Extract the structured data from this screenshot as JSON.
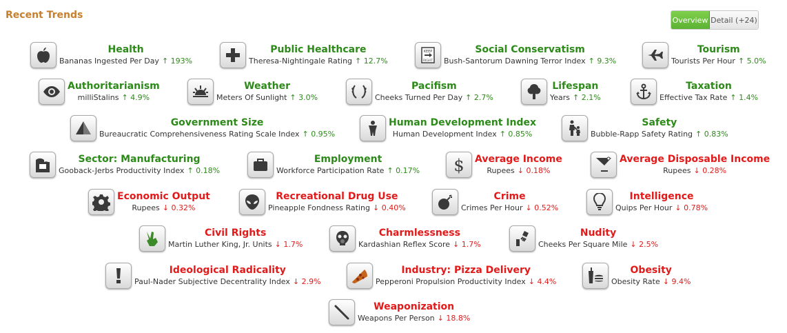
{
  "section_title": "Recent Trends",
  "view_toggle": {
    "overview_label": "Overview",
    "detail_label": "Detail (+24)"
  },
  "colors": {
    "up": "#2c8a19",
    "down": "#e21a1a",
    "title": "#c87f2c",
    "active_toggle": "#6cc13e"
  },
  "trends": [
    {
      "name": "Health",
      "measure": "Bananas Ingested Per Day",
      "arrow": "↑",
      "change": "193%",
      "direction": "up",
      "icon": "apple-icon"
    },
    {
      "name": "Public Healthcare",
      "measure": "Theresa-Nightingale Rating",
      "arrow": "↑",
      "change": "12.7%",
      "direction": "up",
      "icon": "medical-cross-icon"
    },
    {
      "name": "Social Conservatism",
      "measure": "Bush-Santorum Dawning Terror Index",
      "arrow": "↑",
      "change": "9.3%",
      "direction": "up",
      "icon": "keep-right-sign-icon"
    },
    {
      "name": "Tourism",
      "measure": "Tourists Per Hour",
      "arrow": "↑",
      "change": "5.0%",
      "direction": "up",
      "icon": "airplane-icon"
    },
    {
      "name": "Authoritarianism",
      "measure": "milliStalins",
      "arrow": "↑",
      "change": "4.9%",
      "direction": "up",
      "icon": "eye-icon"
    },
    {
      "name": "Weather",
      "measure": "Meters Of Sunlight",
      "arrow": "↑",
      "change": "3.0%",
      "direction": "up",
      "icon": "sunrise-icon"
    },
    {
      "name": "Pacifism",
      "measure": "Cheeks Turned Per Day",
      "arrow": "↑",
      "change": "2.7%",
      "direction": "up",
      "icon": "laurel-wreath-icon"
    },
    {
      "name": "Lifespan",
      "measure": "Years",
      "arrow": "↑",
      "change": "2.1%",
      "direction": "up",
      "icon": "tree-icon"
    },
    {
      "name": "Taxation",
      "measure": "Effective Tax Rate",
      "arrow": "↑",
      "change": "1.4%",
      "direction": "up",
      "icon": "anchor-icon"
    },
    {
      "name": "Government Size",
      "measure": "Bureaucratic Comprehensiveness Rating Scale Index",
      "arrow": "↑",
      "change": "0.95%",
      "direction": "up",
      "icon": "pyramid-icon"
    },
    {
      "name": "Human Development Index",
      "measure": "Human Development Index",
      "arrow": "↑",
      "change": "0.85%",
      "direction": "up",
      "icon": "person-icon"
    },
    {
      "name": "Safety",
      "measure": "Bubble-Rapp Safety Rating",
      "arrow": "↑",
      "change": "0.83%",
      "direction": "up",
      "icon": "parent-child-icon"
    },
    {
      "name": "Sector: Manufacturing",
      "measure": "Gooback-Jerbs Productivity Index",
      "arrow": "↑",
      "change": "0.18%",
      "direction": "up",
      "icon": "factory-icon"
    },
    {
      "name": "Employment",
      "measure": "Workforce Participation Rate",
      "arrow": "↑",
      "change": "0.17%",
      "direction": "up",
      "icon": "briefcase-icon"
    },
    {
      "name": "Average Income",
      "measure": "Rupees",
      "arrow": "↓",
      "change": "0.18%",
      "direction": "down",
      "icon": "dollar-icon"
    },
    {
      "name": "Average Disposable Income",
      "measure": "Rupees",
      "arrow": "↓",
      "change": "0.28%",
      "direction": "down",
      "icon": "cocktail-icon"
    },
    {
      "name": "Economic Output",
      "measure": "Rupees",
      "arrow": "↓",
      "change": "0.32%",
      "direction": "down",
      "icon": "gear-icon"
    },
    {
      "name": "Recreational Drug Use",
      "measure": "Pineapple Fondness Rating",
      "arrow": "↓",
      "change": "0.40%",
      "direction": "down",
      "icon": "alien-icon"
    },
    {
      "name": "Crime",
      "measure": "Crimes Per Hour",
      "arrow": "↓",
      "change": "0.52%",
      "direction": "down",
      "icon": "bomb-icon"
    },
    {
      "name": "Intelligence",
      "measure": "Quips Per Hour",
      "arrow": "↓",
      "change": "0.78%",
      "direction": "down",
      "icon": "lightbulb-icon"
    },
    {
      "name": "Civil Rights",
      "measure": "Martin Luther King, Jr. Units",
      "arrow": "↓",
      "change": "1.7%",
      "direction": "down",
      "icon": "peace-hand-icon"
    },
    {
      "name": "Charmlessness",
      "measure": "Kardashian Reflex Score",
      "arrow": "↓",
      "change": "1.7%",
      "direction": "down",
      "icon": "gas-mask-icon"
    },
    {
      "name": "Nudity",
      "measure": "Cheeks Per Square Mile",
      "arrow": "↓",
      "change": "2.5%",
      "direction": "down",
      "icon": "shower-icon"
    },
    {
      "name": "Ideological Radicality",
      "measure": "Paul-Nader Subjective Decentrality Index",
      "arrow": "↓",
      "change": "2.9%",
      "direction": "down",
      "icon": "exclamation-icon"
    },
    {
      "name": "Industry: Pizza Delivery",
      "measure": "Pepperoni Propulsion Productivity Index",
      "arrow": "↓",
      "change": "4.4%",
      "direction": "down",
      "icon": "pizza-slice-icon"
    },
    {
      "name": "Obesity",
      "measure": "Obesity Rate",
      "arrow": "↓",
      "change": "9.4%",
      "direction": "down",
      "icon": "soda-burger-icon"
    },
    {
      "name": "Weaponization",
      "measure": "Weapons Per Person",
      "arrow": "↓",
      "change": "18.8%",
      "direction": "down",
      "icon": "sword-icon"
    }
  ]
}
